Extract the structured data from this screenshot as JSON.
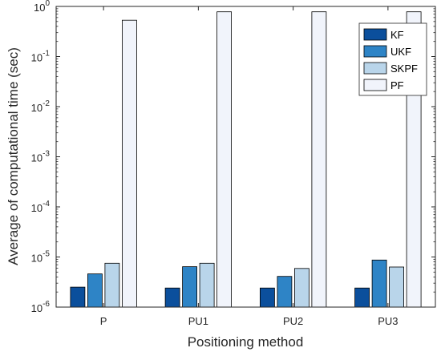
{
  "chart_data": {
    "type": "bar",
    "title": "",
    "xlabel": "Positioning method",
    "ylabel": "Average of computational time (sec)",
    "yscale": "log",
    "ylim": [
      1e-06,
      1
    ],
    "grid": false,
    "legend_position": "top-right",
    "categories": [
      "P",
      "PU1",
      "PU2",
      "PU3"
    ],
    "series": [
      {
        "name": "KF",
        "color": "#0b4f9c",
        "values": [
          2.5e-06,
          2.4e-06,
          2.4e-06,
          2.4e-06
        ]
      },
      {
        "name": "UKF",
        "color": "#2e84c6",
        "values": [
          4.6e-06,
          6.4e-06,
          4.1e-06,
          8.7e-06
        ]
      },
      {
        "name": "SKPF",
        "color": "#b9d5ea",
        "values": [
          7.5e-06,
          7.5e-06,
          5.9e-06,
          6.3e-06
        ]
      },
      {
        "name": "PF",
        "color": "#f1f4fb",
        "values": [
          0.53,
          0.78,
          0.78,
          0.78
        ]
      }
    ],
    "ytick_labels": [
      {
        "base": "10",
        "exp": "-6",
        "value": 1e-06
      },
      {
        "base": "10",
        "exp": "-5",
        "value": 1e-05
      },
      {
        "base": "10",
        "exp": "-4",
        "value": 0.0001
      },
      {
        "base": "10",
        "exp": "-3",
        "value": 0.001
      },
      {
        "base": "10",
        "exp": "-2",
        "value": 0.01
      },
      {
        "base": "10",
        "exp": "-1",
        "value": 0.1
      },
      {
        "base": "10",
        "exp": "0",
        "value": 1
      }
    ]
  }
}
